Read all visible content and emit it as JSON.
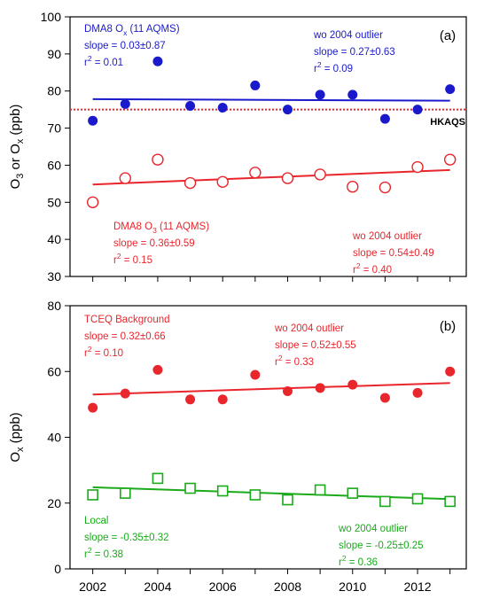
{
  "chart_data": [
    {
      "panel_label": "(a)",
      "type": "scatter",
      "ylabel": {
        "base1": "O",
        "sub1": "3",
        "mid": " or O",
        "sub2": "x",
        "unit": " (ppb)"
      },
      "xlim": [
        2001.3,
        2013.5
      ],
      "ylim": [
        30,
        100
      ],
      "yticks": [
        "30",
        "40",
        "50",
        "60",
        "70",
        "80",
        "90",
        "100"
      ],
      "series": [
        {
          "name": "DMA8 Ox (11 AQMS)",
          "marker": "filled-circle",
          "color": "#1a1acc",
          "x": [
            2002,
            2003,
            2004,
            2005,
            2006,
            2007,
            2008,
            2009,
            2010,
            2011,
            2012,
            2013
          ],
          "y": [
            72,
            76.5,
            88,
            76,
            75.5,
            81.5,
            75,
            79,
            79,
            72.5,
            75,
            80.5
          ],
          "trend": [
            77.8,
            77.4
          ]
        },
        {
          "name": "DMA8 O3 (11 AQMS)",
          "marker": "open-circle",
          "color": "#e8262c",
          "x": [
            2002,
            2003,
            2004,
            2005,
            2006,
            2007,
            2008,
            2009,
            2010,
            2011,
            2012,
            2013
          ],
          "y": [
            50,
            56.5,
            61.5,
            55.2,
            55.5,
            58,
            56.5,
            57.5,
            54.2,
            54,
            59.5,
            61.5
          ],
          "trend": [
            54.8,
            58.7
          ]
        }
      ],
      "reference_line": {
        "y": 75,
        "label": "HKAQS",
        "color": "#e8262c"
      },
      "annotations": [
        {
          "id": "ox_all",
          "color": "#1a1acc",
          "lines": [
            {
              "parts": [
                {
                  "t": "DMA8 O"
                },
                {
                  "t": "x",
                  "sub": true
                },
                {
                  "t": " (11 AQMS)"
                }
              ]
            },
            {
              "parts": [
                {
                  "t": "slope = 0.03±0.87"
                }
              ]
            },
            {
              "parts": [
                {
                  "t": "r"
                },
                {
                  "t": "2",
                  "sup": true
                },
                {
                  "t": " = 0.01"
                }
              ]
            }
          ]
        },
        {
          "id": "ox_wo",
          "color": "#1a1acc",
          "lines": [
            {
              "parts": [
                {
                  "t": "wo 2004 outlier"
                }
              ]
            },
            {
              "parts": [
                {
                  "t": "slope  = 0.27±0.63"
                }
              ]
            },
            {
              "parts": [
                {
                  "t": "r"
                },
                {
                  "t": "2",
                  "sup": true
                },
                {
                  "t": " = 0.09"
                }
              ]
            }
          ]
        },
        {
          "id": "o3_all",
          "color": "#e8262c",
          "lines": [
            {
              "parts": [
                {
                  "t": "DMA8 O"
                },
                {
                  "t": "3",
                  "sub": true
                },
                {
                  "t": " (11 AQMS)"
                }
              ]
            },
            {
              "parts": [
                {
                  "t": "slope  = 0.36±0.59"
                }
              ]
            },
            {
              "parts": [
                {
                  "t": "r"
                },
                {
                  "t": "2",
                  "sup": true
                },
                {
                  "t": " = 0.15"
                }
              ]
            }
          ]
        },
        {
          "id": "o3_wo",
          "color": "#e8262c",
          "lines": [
            {
              "parts": [
                {
                  "t": "wo 2004 outlier"
                }
              ]
            },
            {
              "parts": [
                {
                  "t": "slope  = 0.54±0.49"
                }
              ]
            },
            {
              "parts": [
                {
                  "t": "r"
                },
                {
                  "t": "2",
                  "sup": true
                },
                {
                  "t": " = 0.40"
                }
              ]
            }
          ]
        }
      ]
    },
    {
      "panel_label": "(b)",
      "type": "scatter",
      "ylabel": {
        "base1": "O",
        "sub1": "x",
        "unit": " (ppb)"
      },
      "xlim": [
        2001.3,
        2013.5
      ],
      "ylim": [
        0,
        80
      ],
      "yticks": [
        "0",
        "20",
        "40",
        "60",
        "80"
      ],
      "xticks": [
        "2002",
        "2004",
        "2006",
        "2008",
        "2010",
        "2012"
      ],
      "series": [
        {
          "name": "TCEQ Background",
          "marker": "filled-circle",
          "color": "#e8262c",
          "x": [
            2002,
            2003,
            2004,
            2005,
            2006,
            2007,
            2008,
            2009,
            2010,
            2011,
            2012,
            2013
          ],
          "y": [
            49,
            53.3,
            60.5,
            51.5,
            51.5,
            59,
            54,
            55,
            56,
            52,
            53.5,
            60
          ],
          "trend": [
            53,
            56.5
          ]
        },
        {
          "name": "Local",
          "marker": "open-square",
          "color": "#1aaa1a",
          "x": [
            2002,
            2003,
            2004,
            2005,
            2006,
            2007,
            2008,
            2009,
            2010,
            2011,
            2012,
            2013
          ],
          "y": [
            22.5,
            23,
            27.5,
            24.5,
            23.7,
            22.5,
            21,
            24,
            23,
            20.5,
            21.3,
            20.5
          ],
          "trend": [
            24.8,
            21.2
          ]
        }
      ],
      "annotations": [
        {
          "id": "bg_all",
          "color": "#e8262c",
          "lines": [
            {
              "parts": [
                {
                  "t": "TCEQ Background"
                }
              ]
            },
            {
              "parts": [
                {
                  "t": "slope = 0.32±0.66"
                }
              ]
            },
            {
              "parts": [
                {
                  "t": "r"
                },
                {
                  "t": "2",
                  "sup": true
                },
                {
                  "t": " = 0.10"
                }
              ]
            }
          ]
        },
        {
          "id": "bg_wo",
          "color": "#e8262c",
          "lines": [
            {
              "parts": [
                {
                  "t": "wo 2004 outlier"
                }
              ]
            },
            {
              "parts": [
                {
                  "t": "slope  = 0.52±0.55"
                }
              ]
            },
            {
              "parts": [
                {
                  "t": "r"
                },
                {
                  "t": "2",
                  "sup": true
                },
                {
                  "t": " = 0.33"
                }
              ]
            }
          ]
        },
        {
          "id": "loc_all",
          "color": "#1aaa1a",
          "lines": [
            {
              "parts": [
                {
                  "t": "Local"
                }
              ]
            },
            {
              "parts": [
                {
                  "t": "slope = -0.35±0.32"
                }
              ]
            },
            {
              "parts": [
                {
                  "t": "r"
                },
                {
                  "t": "2",
                  "sup": true
                },
                {
                  "t": " = 0.38"
                }
              ]
            }
          ]
        },
        {
          "id": "loc_wo",
          "color": "#1aaa1a",
          "lines": [
            {
              "parts": [
                {
                  "t": "wo 2004 outlier"
                }
              ]
            },
            {
              "parts": [
                {
                  "t": "slope  = -0.25±0.25"
                }
              ]
            },
            {
              "parts": [
                {
                  "t": "r"
                },
                {
                  "t": "2",
                  "sup": true
                },
                {
                  "t": " = 0.36"
                }
              ]
            }
          ]
        }
      ]
    }
  ]
}
